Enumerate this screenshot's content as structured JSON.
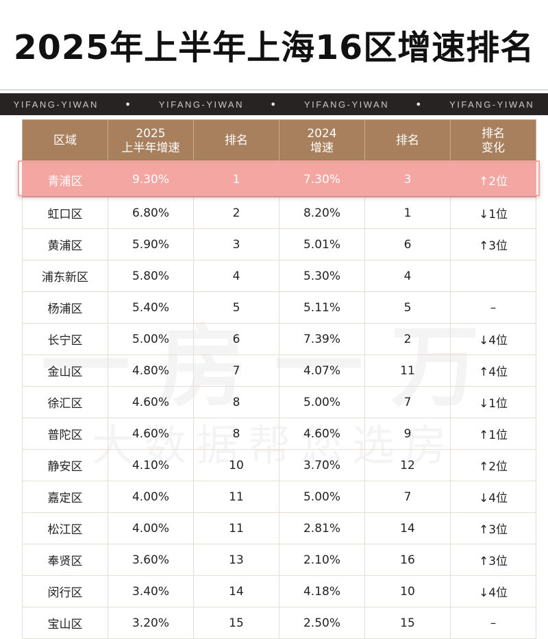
{
  "title": "2025年上半年上海16区增速排名",
  "band_text": "YIFANG-YIWAN",
  "watermark": {
    "line1": "一房一万",
    "line2": "大数据帮您选房"
  },
  "colors": {
    "header": "#a9805e",
    "highlight": "#f4a6a2",
    "up": "#c8202f",
    "down": "#1e9a48"
  },
  "table": {
    "columns": [
      "区域",
      "2025\n上半年增速",
      "排名",
      "2024\n增速",
      "排名",
      "排名\n变化"
    ],
    "rows": [
      {
        "district": "青浦区",
        "growth_2025": "9.30%",
        "rank_2025": "1",
        "growth_2024": "7.30%",
        "rank_2024": "3",
        "change": "↑2位",
        "dir": "up",
        "highlight": true
      },
      {
        "district": "虹口区",
        "growth_2025": "6.80%",
        "rank_2025": "2",
        "growth_2024": "8.20%",
        "rank_2024": "1",
        "change": "↓1位",
        "dir": "down"
      },
      {
        "district": "黄浦区",
        "growth_2025": "5.90%",
        "rank_2025": "3",
        "growth_2024": "5.01%",
        "rank_2024": "6",
        "change": "↑3位",
        "dir": "up"
      },
      {
        "district": "浦东新区",
        "growth_2025": "5.80%",
        "rank_2025": "4",
        "growth_2024": "5.30%",
        "rank_2024": "4",
        "change": "",
        "dir": "same"
      },
      {
        "district": "杨浦区",
        "growth_2025": "5.40%",
        "rank_2025": "5",
        "growth_2024": "5.11%",
        "rank_2024": "5",
        "change": "–",
        "dir": "same"
      },
      {
        "district": "长宁区",
        "growth_2025": "5.00%",
        "rank_2025": "6",
        "growth_2024": "7.39%",
        "rank_2024": "2",
        "change": "↓4位",
        "dir": "down"
      },
      {
        "district": "金山区",
        "growth_2025": "4.80%",
        "rank_2025": "7",
        "growth_2024": "4.07%",
        "rank_2024": "11",
        "change": "↑4位",
        "dir": "up"
      },
      {
        "district": "徐汇区",
        "growth_2025": "4.60%",
        "rank_2025": "8",
        "growth_2024": "5.00%",
        "rank_2024": "7",
        "change": "↓1位",
        "dir": "down"
      },
      {
        "district": "普陀区",
        "growth_2025": "4.60%",
        "rank_2025": "8",
        "growth_2024": "4.60%",
        "rank_2024": "9",
        "change": "↑1位",
        "dir": "up"
      },
      {
        "district": "静安区",
        "growth_2025": "4.10%",
        "rank_2025": "10",
        "growth_2024": "3.70%",
        "rank_2024": "12",
        "change": "↑2位",
        "dir": "up"
      },
      {
        "district": "嘉定区",
        "growth_2025": "4.00%",
        "rank_2025": "11",
        "growth_2024": "5.00%",
        "rank_2024": "7",
        "change": "↓4位",
        "dir": "down"
      },
      {
        "district": "松江区",
        "growth_2025": "4.00%",
        "rank_2025": "11",
        "growth_2024": "2.81%",
        "rank_2024": "14",
        "change": "↑3位",
        "dir": "up"
      },
      {
        "district": "奉贤区",
        "growth_2025": "3.60%",
        "rank_2025": "13",
        "growth_2024": "2.10%",
        "rank_2024": "16",
        "change": "↑3位",
        "dir": "up"
      },
      {
        "district": "闵行区",
        "growth_2025": "3.40%",
        "rank_2025": "14",
        "growth_2024": "4.18%",
        "rank_2024": "10",
        "change": "↓4位",
        "dir": "down"
      },
      {
        "district": "宝山区",
        "growth_2025": "3.20%",
        "rank_2025": "15",
        "growth_2024": "2.50%",
        "rank_2024": "15",
        "change": "–",
        "dir": "same"
      }
    ]
  }
}
